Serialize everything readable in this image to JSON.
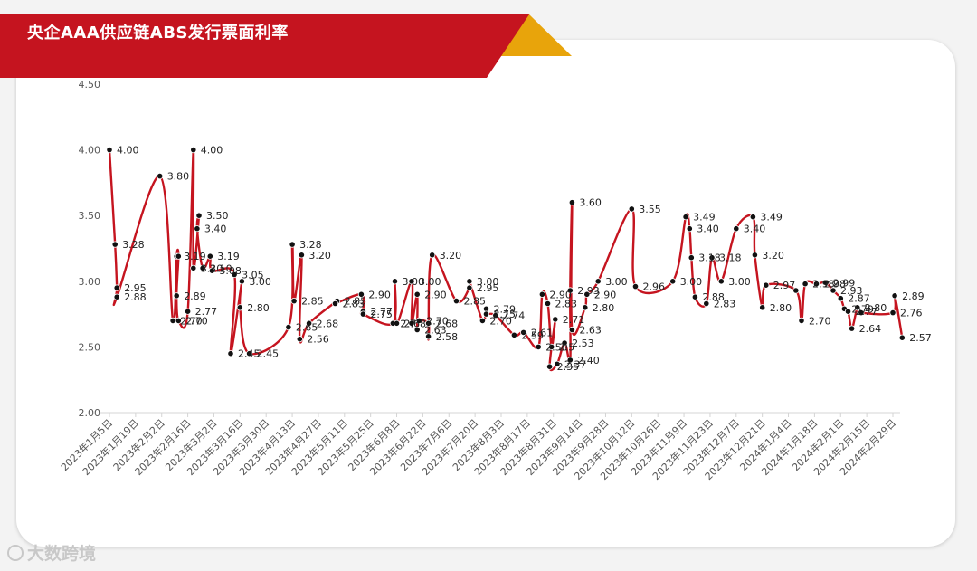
{
  "watermark": "大数跨境",
  "colors": {
    "line": "#c5141f",
    "marker": "#111111",
    "banner": "#c5141f",
    "accent": "#e8a40b"
  },
  "chart_data": {
    "type": "line",
    "title": "央企AAA供应链ABS发行票面利率",
    "xlabel": "",
    "ylabel": "",
    "ylim": [
      2.0,
      4.5
    ],
    "yticks": [
      "2.00",
      "2.50",
      "3.00",
      "3.50",
      "4.00",
      "4.50"
    ],
    "grid": false,
    "legend": "none",
    "x_ticks": [
      "2023年1月5日",
      "2023年1月19日",
      "2023年2月2日",
      "2023年2月16日",
      "2023年3月2日",
      "2023年3月16日",
      "2023年3月30日",
      "2023年4月13日",
      "2023年4月27日",
      "2023年5月11日",
      "2023年5月25日",
      "2023年6月8日",
      "2023年6月22日",
      "2023年7月6日",
      "2023年7月20日",
      "2023年8月3日",
      "2023年8月17日",
      "2023年8月31日",
      "2023年9月14日",
      "2023年9月28日",
      "2023年10月12日",
      "2023年10月26日",
      "2023年11月9日",
      "2023年11月23日",
      "2023年12月7日",
      "2023年12月21日",
      "2024年1月4日",
      "2024年1月18日",
      "2024年2月1日",
      "2024年2月15日",
      "2024年2月29日"
    ],
    "series": [
      {
        "values": [
          [
            "2023-01-05",
            4.0
          ],
          [
            "2023-01-08",
            3.28
          ],
          [
            "2023-01-09",
            2.95
          ],
          [
            "2023-01-09",
            2.88
          ],
          [
            "2023-02-01",
            3.8
          ],
          [
            "2023-02-08",
            2.7
          ],
          [
            "2023-02-10",
            3.19
          ],
          [
            "2023-02-11",
            3.19
          ],
          [
            "2023-02-10",
            2.89
          ],
          [
            "2023-02-11",
            2.7
          ],
          [
            "2023-02-16",
            2.77
          ],
          [
            "2023-02-19",
            4.0
          ],
          [
            "2023-02-19",
            3.1
          ],
          [
            "2023-02-22",
            3.5
          ],
          [
            "2023-02-21",
            3.4
          ],
          [
            "2023-02-24",
            3.1
          ],
          [
            "2023-02-28",
            3.19
          ],
          [
            "2023-03-01",
            3.08
          ],
          [
            "2023-03-13",
            3.05
          ],
          [
            "2023-03-11",
            2.45
          ],
          [
            "2023-03-17",
            3.0
          ],
          [
            "2023-03-16",
            2.8
          ],
          [
            "2023-03-21",
            2.45
          ],
          [
            "2023-04-11",
            2.65
          ],
          [
            "2023-04-13",
            3.28
          ],
          [
            "2023-04-14",
            2.85
          ],
          [
            "2023-04-18",
            3.2
          ],
          [
            "2023-04-17",
            2.56
          ],
          [
            "2023-04-22",
            2.68
          ],
          [
            "2023-05-07",
            2.85
          ],
          [
            "2023-05-06",
            2.83
          ],
          [
            "2023-05-20",
            2.9
          ],
          [
            "2023-05-21",
            2.77
          ],
          [
            "2023-05-21",
            2.75
          ],
          [
            "2023-06-06",
            2.68
          ],
          [
            "2023-06-07",
            3.0
          ],
          [
            "2023-06-08",
            2.68
          ],
          [
            "2023-06-16",
            3.0
          ],
          [
            "2023-06-16",
            2.68
          ],
          [
            "2023-06-19",
            2.9
          ],
          [
            "2023-06-19",
            2.63
          ],
          [
            "2023-06-20",
            2.7
          ],
          [
            "2023-06-25",
            2.68
          ],
          [
            "2023-06-25",
            2.58
          ],
          [
            "2023-06-27",
            3.2
          ],
          [
            "2023-07-10",
            2.85
          ],
          [
            "2023-07-17",
            2.95
          ],
          [
            "2023-07-17",
            3.0
          ],
          [
            "2023-07-24",
            2.7
          ],
          [
            "2023-07-26",
            2.79
          ],
          [
            "2023-07-26",
            2.75
          ],
          [
            "2023-07-31",
            2.74
          ],
          [
            "2023-08-10",
            2.59
          ],
          [
            "2023-08-15",
            2.61
          ],
          [
            "2023-08-23",
            2.5
          ],
          [
            "2023-08-25",
            2.9
          ],
          [
            "2023-08-28",
            2.83
          ],
          [
            "2023-08-30",
            2.5
          ],
          [
            "2023-09-01",
            2.71
          ],
          [
            "2023-08-29",
            2.35
          ],
          [
            "2023-09-02",
            2.37
          ],
          [
            "2023-09-06",
            2.53
          ],
          [
            "2023-09-09",
            2.4
          ],
          [
            "2023-09-09",
            2.93
          ],
          [
            "2023-09-10",
            3.6
          ],
          [
            "2023-09-10",
            2.63
          ],
          [
            "2023-09-17",
            2.8
          ],
          [
            "2023-09-18",
            2.9
          ],
          [
            "2023-09-24",
            3.0
          ],
          [
            "2023-10-12",
            3.55
          ],
          [
            "2023-10-14",
            2.96
          ],
          [
            "2023-11-03",
            3.0
          ],
          [
            "2023-11-10",
            3.49
          ],
          [
            "2023-11-12",
            3.4
          ],
          [
            "2023-11-13",
            3.18
          ],
          [
            "2023-11-15",
            2.88
          ],
          [
            "2023-11-21",
            2.83
          ],
          [
            "2023-11-24",
            3.18
          ],
          [
            "2023-11-29",
            3.0
          ],
          [
            "2023-12-07",
            3.4
          ],
          [
            "2023-12-16",
            3.49
          ],
          [
            "2023-12-17",
            3.2
          ],
          [
            "2023-12-21",
            2.8
          ],
          [
            "2023-12-23",
            2.97
          ],
          [
            "2024-01-08",
            2.93
          ],
          [
            "2024-01-11",
            2.7
          ],
          [
            "2024-01-13",
            2.98
          ],
          [
            "2024-01-19",
            2.98
          ],
          [
            "2024-01-24",
            2.99
          ],
          [
            "2024-01-28",
            2.93
          ],
          [
            "2024-02-01",
            2.87
          ],
          [
            "2024-02-03",
            2.79
          ],
          [
            "2024-02-05",
            2.77
          ],
          [
            "2024-02-07",
            2.64
          ],
          [
            "2024-02-10",
            2.8
          ],
          [
            "2024-02-12",
            2.76
          ],
          [
            "2024-02-29",
            2.76
          ],
          [
            "2024-03-01",
            2.89
          ],
          [
            "2024-03-05",
            2.57
          ]
        ]
      }
    ],
    "data_labels": [
      [
        "2023-01-05",
        4.0,
        "4.00"
      ],
      [
        "2023-01-08",
        3.28,
        "3.28"
      ],
      [
        "2023-01-09",
        2.95,
        "2.95"
      ],
      [
        "2023-01-09",
        2.88,
        "2.88"
      ],
      [
        "2023-02-01",
        3.8,
        "3.80"
      ],
      [
        "2023-02-08",
        2.7,
        "2.70"
      ],
      [
        "2023-02-10",
        3.19,
        "3.19"
      ],
      [
        "2023-02-10",
        2.89,
        "2.89"
      ],
      [
        "2023-02-11",
        2.7,
        "2.70"
      ],
      [
        "2023-02-16",
        2.77,
        "2.77"
      ],
      [
        "2023-02-19",
        4.0,
        "4.00"
      ],
      [
        "2023-02-19",
        3.1,
        "3.10"
      ],
      [
        "2023-02-22",
        3.5,
        "3.50"
      ],
      [
        "2023-02-21",
        3.4,
        "3.40"
      ],
      [
        "2023-02-24",
        3.1,
        "3.10"
      ],
      [
        "2023-02-28",
        3.19,
        "3.19"
      ],
      [
        "2023-03-01",
        3.08,
        "3.08"
      ],
      [
        "2023-03-13",
        3.05,
        "3.05"
      ],
      [
        "2023-03-11",
        2.45,
        "2.45"
      ],
      [
        "2023-03-17",
        3.0,
        "3.00"
      ],
      [
        "2023-03-16",
        2.8,
        "2.80"
      ],
      [
        "2023-03-21",
        2.45,
        "2.45"
      ],
      [
        "2023-04-11",
        2.65,
        "2.65"
      ],
      [
        "2023-04-13",
        3.28,
        "3.28"
      ],
      [
        "2023-04-14",
        2.85,
        "2.85"
      ],
      [
        "2023-04-18",
        3.2,
        "3.20"
      ],
      [
        "2023-04-17",
        2.56,
        "2.56"
      ],
      [
        "2023-04-22",
        2.68,
        "2.68"
      ],
      [
        "2023-05-07",
        2.85,
        "2.85"
      ],
      [
        "2023-05-06",
        2.83,
        "2.83"
      ],
      [
        "2023-05-20",
        2.9,
        "2.90"
      ],
      [
        "2023-05-21",
        2.77,
        "2.77"
      ],
      [
        "2023-05-21",
        2.75,
        "2.75"
      ],
      [
        "2023-06-06",
        2.68,
        "2.7"
      ],
      [
        "2023-06-07",
        3.0,
        "3.00"
      ],
      [
        "2023-06-08",
        2.68,
        "2.68"
      ],
      [
        "2023-06-16",
        3.0,
        "3.00"
      ],
      [
        "2023-06-19",
        2.9,
        "2.90"
      ],
      [
        "2023-06-19",
        2.63,
        "2.63"
      ],
      [
        "2023-06-20",
        2.7,
        "2.70"
      ],
      [
        "2023-06-25",
        2.68,
        "2.68"
      ],
      [
        "2023-06-25",
        2.58,
        "2.58"
      ],
      [
        "2023-06-27",
        3.2,
        "3.20"
      ],
      [
        "2023-07-10",
        2.85,
        "2.85"
      ],
      [
        "2023-07-17",
        2.95,
        "2.95"
      ],
      [
        "2023-07-17",
        3.0,
        "3.00"
      ],
      [
        "2023-07-24",
        2.7,
        "2.70"
      ],
      [
        "2023-07-26",
        2.79,
        "2.79"
      ],
      [
        "2023-07-26",
        2.75,
        "2.75"
      ],
      [
        "2023-07-31",
        2.74,
        "2.74"
      ],
      [
        "2023-08-10",
        2.59,
        "2.59"
      ],
      [
        "2023-08-15",
        2.61,
        "2.61"
      ],
      [
        "2023-08-23",
        2.5,
        "2.50"
      ],
      [
        "2023-08-25",
        2.9,
        "2.90"
      ],
      [
        "2023-08-28",
        2.83,
        "2.83"
      ],
      [
        "2023-08-30",
        2.5,
        "2.5"
      ],
      [
        "2023-09-01",
        2.71,
        "2.71"
      ],
      [
        "2023-08-29",
        2.35,
        "2.35"
      ],
      [
        "2023-09-02",
        2.37,
        "2.37"
      ],
      [
        "2023-09-06",
        2.53,
        "2.53"
      ],
      [
        "2023-09-09",
        2.4,
        "2.40"
      ],
      [
        "2023-09-09",
        2.93,
        "2.93"
      ],
      [
        "2023-09-10",
        3.6,
        "3.60"
      ],
      [
        "2023-09-10",
        2.63,
        "2.63"
      ],
      [
        "2023-09-17",
        2.8,
        "2.80"
      ],
      [
        "2023-09-18",
        2.9,
        "2.90"
      ],
      [
        "2023-09-24",
        3.0,
        "3.00"
      ],
      [
        "2023-10-12",
        3.55,
        "3.55"
      ],
      [
        "2023-10-14",
        2.96,
        "2.96"
      ],
      [
        "2023-11-03",
        3.0,
        "3.00"
      ],
      [
        "2023-11-10",
        3.49,
        "3.49"
      ],
      [
        "2023-11-12",
        3.4,
        "3.40"
      ],
      [
        "2023-11-13",
        3.18,
        "3.18"
      ],
      [
        "2023-11-15",
        2.88,
        "2.88"
      ],
      [
        "2023-11-21",
        2.83,
        "2.83"
      ],
      [
        "2023-11-24",
        3.18,
        "3.18"
      ],
      [
        "2023-11-29",
        3.0,
        "3.00"
      ],
      [
        "2023-12-07",
        3.4,
        "3.40"
      ],
      [
        "2023-12-16",
        3.49,
        "3.49"
      ],
      [
        "2023-12-17",
        3.2,
        "3.20"
      ],
      [
        "2023-12-21",
        2.8,
        "2.80"
      ],
      [
        "2023-12-23",
        2.97,
        "2.97"
      ],
      [
        "2024-01-11",
        2.7,
        "2.70"
      ],
      [
        "2024-01-13",
        2.98,
        "2.98"
      ],
      [
        "2024-01-19",
        2.98,
        "2.98"
      ],
      [
        "2024-01-24",
        2.99,
        "2.99"
      ],
      [
        "2024-01-28",
        2.93,
        "2.93"
      ],
      [
        "2024-02-01",
        2.87,
        "2.87"
      ],
      [
        "2024-02-03",
        2.79,
        "2.79"
      ],
      [
        "2024-02-05",
        2.77,
        "2.77"
      ],
      [
        "2024-02-07",
        2.64,
        "2.64"
      ],
      [
        "2024-02-10",
        2.8,
        "2.80"
      ],
      [
        "2024-02-29",
        2.76,
        "2.76"
      ],
      [
        "2024-03-01",
        2.89,
        "2.89"
      ],
      [
        "2024-03-05",
        2.57,
        "2.57"
      ]
    ]
  }
}
